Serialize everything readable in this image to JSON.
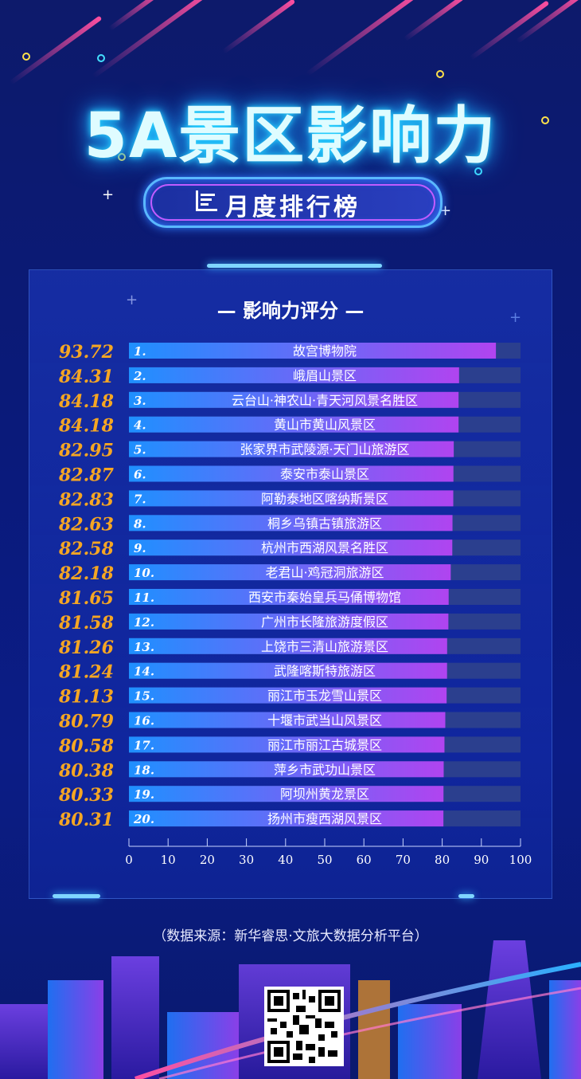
{
  "header": {
    "title": "5A景区影响力",
    "subtitle": "月度排行榜"
  },
  "panel": {
    "title": "— 影响力评分 —"
  },
  "chart_data": {
    "type": "bar",
    "orientation": "horizontal",
    "title": "影响力评分",
    "xlim": [
      0,
      100
    ],
    "xticks": [
      0,
      10,
      20,
      30,
      40,
      50,
      60,
      70,
      80,
      90,
      100
    ],
    "ranks": [
      "1.",
      "2.",
      "3.",
      "4.",
      "5.",
      "6.",
      "7.",
      "8.",
      "9.",
      "10.",
      "11.",
      "12.",
      "13.",
      "14.",
      "15.",
      "16.",
      "17.",
      "18.",
      "19.",
      "20."
    ],
    "categories": [
      "故宫博物院",
      "峨眉山景区",
      "云台山·神农山·青天河风景名胜区",
      "黄山市黄山风景区",
      "张家界市武陵源·天门山旅游区",
      "泰安市泰山景区",
      "阿勒泰地区喀纳斯景区",
      "桐乡乌镇古镇旅游区",
      "杭州市西湖风景名胜区",
      "老君山·鸡冠洞旅游区",
      "西安市秦始皇兵马俑博物馆",
      "广州市长隆旅游度假区",
      "上饶市三清山旅游景区",
      "武隆喀斯特旅游区",
      "丽江市玉龙雪山景区",
      "十堰市武当山风景区",
      "丽江市丽江古城景区",
      "萍乡市武功山景区",
      "阿坝州黄龙景区",
      "扬州市瘦西湖风景区"
    ],
    "values": [
      93.72,
      84.31,
      84.18,
      84.18,
      82.95,
      82.87,
      82.83,
      82.63,
      82.58,
      82.18,
      81.65,
      81.58,
      81.26,
      81.24,
      81.13,
      80.79,
      80.58,
      80.38,
      80.33,
      80.31
    ],
    "value_labels": [
      "93.72",
      "84.31",
      "84.18",
      "84.18",
      "82.95",
      "82.87",
      "82.83",
      "82.63",
      "82.58",
      "82.18",
      "81.65",
      "81.58",
      "81.26",
      "81.24",
      "81.13",
      "80.79",
      "80.58",
      "80.38",
      "80.33",
      "80.31"
    ],
    "grid": false,
    "colors": {
      "bar_start": "#1e90ff",
      "bar_end": "#b044f0",
      "track": "#2b3f8e",
      "value_text": "#f5a623"
    }
  },
  "footer": {
    "source": "（数据来源：新华睿思·文旅大数据分析平台）"
  },
  "icons": {
    "subtitle_icon": "bar-chart-icon",
    "qr": "qr-code"
  }
}
